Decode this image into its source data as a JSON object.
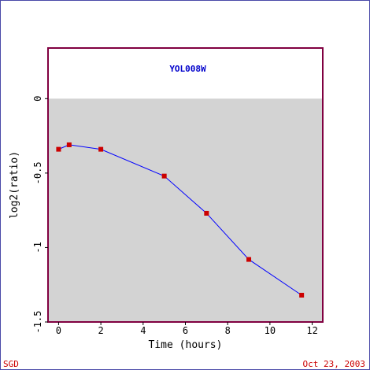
{
  "footer": {
    "source": "SGD",
    "date": "Oct 23, 2003"
  },
  "colors": {
    "plot_border": "#800040",
    "negative_region": "#d3d3d3",
    "line": "#0000ff",
    "marker": "#cc0000",
    "title": "#0000cc",
    "footer_text": "#cc0000",
    "outer_border": "#4a4aa8"
  },
  "chart_data": {
    "type": "line",
    "title": "YOL008W",
    "xlabel": "Time (hours)",
    "ylabel": "log2(ratio)",
    "xlim": [
      -0.5,
      12.5
    ],
    "ylim": [
      -1.5,
      0.34
    ],
    "x_ticks": [
      0,
      2,
      4,
      6,
      8,
      10,
      12
    ],
    "x_tick_labels": [
      "0",
      "2",
      "4",
      "6",
      "8",
      "10",
      "12"
    ],
    "y_ticks": [
      0,
      -0.5,
      -1,
      -1.5
    ],
    "y_tick_labels": [
      "0",
      "-0.5",
      "-1",
      "-1.5"
    ],
    "shaded_region": "y < 0",
    "grid": false,
    "series": [
      {
        "x": [
          0,
          0.5,
          2,
          5,
          7,
          9,
          11.5
        ],
        "y": [
          -0.34,
          -0.31,
          -0.34,
          -0.52,
          -0.77,
          -1.08,
          -1.32
        ]
      }
    ]
  }
}
